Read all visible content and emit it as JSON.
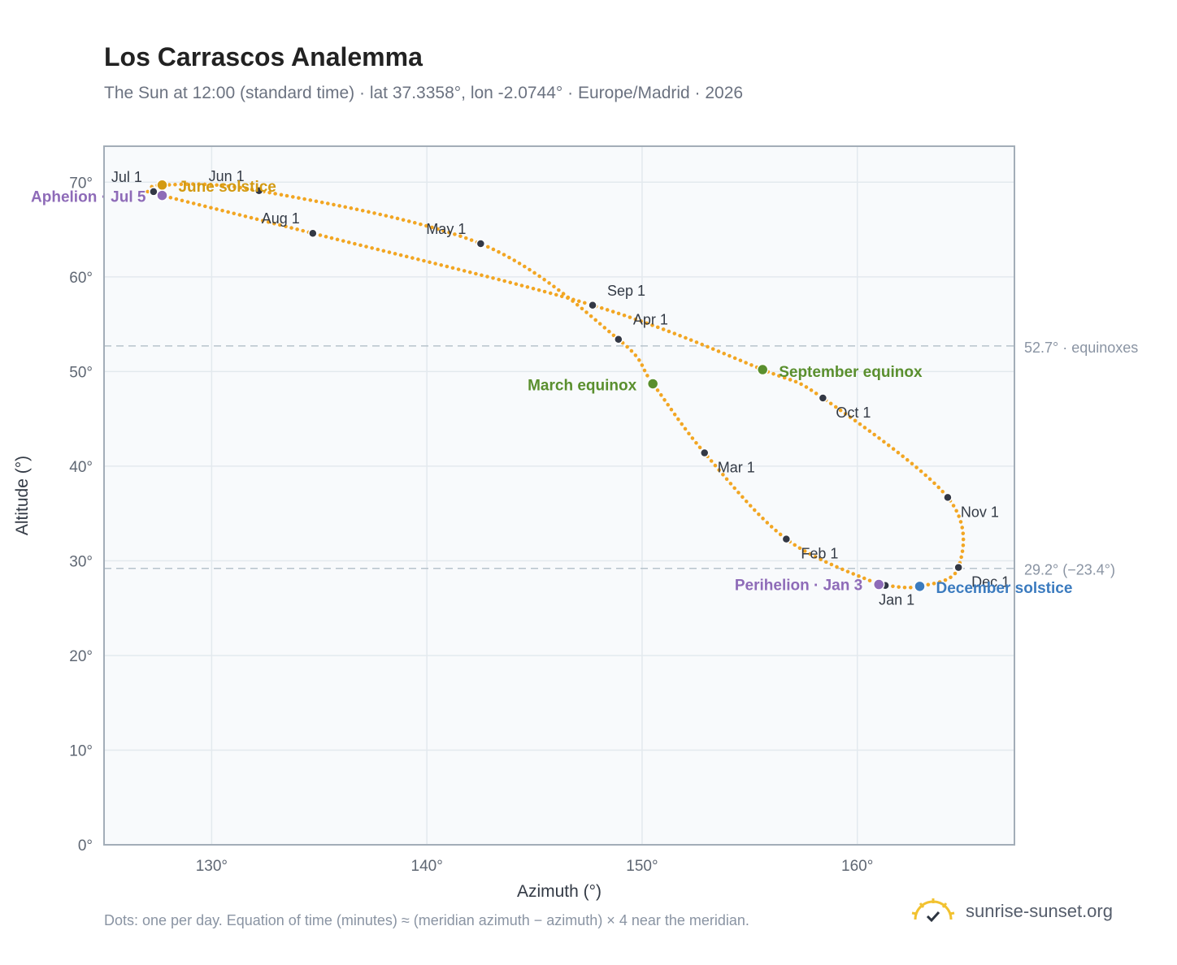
{
  "header": {
    "title": "Los Carrascos Analemma",
    "subtitle": "The Sun at 12:00 (standard time) · lat 37.3358°, lon -2.0744° · Europe/Madrid · 2026"
  },
  "footer": {
    "note": "Dots: one per day. Equation of time (minutes) ≈ (meridian azimuth − azimuth) × 4 near the meridian.",
    "brand": "sunrise-sunset.org"
  },
  "colors": {
    "curve": "#f2a623",
    "month_marker": "#333845",
    "solstice_june": "#d39a12",
    "solstice_december": "#3b7bbf",
    "equinox": "#5a8f2e",
    "apsis": "#8e6bb8",
    "reference_line": "#b7c3cc",
    "plot_background": "#f8fafc",
    "grid": "#e3e9ee",
    "frame": "#a3adb8"
  },
  "chart_data": {
    "type": "scatter",
    "xlabel": "Azimuth (°)",
    "ylabel": "Altitude (°)",
    "xlim": [
      125,
      167.3
    ],
    "ylim": [
      0,
      73.8
    ],
    "x_ticks": [
      130,
      140,
      150,
      160
    ],
    "y_ticks": [
      0,
      10,
      20,
      30,
      40,
      50,
      60,
      70
    ],
    "x_tick_labels": [
      "130°",
      "140°",
      "150°",
      "160°"
    ],
    "y_tick_labels": [
      "0°",
      "10°",
      "20°",
      "30°",
      "40°",
      "50°",
      "60°",
      "70°"
    ],
    "grid": true,
    "path": [
      {
        "date": "Jan 1",
        "az": 161.3,
        "alt": 27.4
      },
      {
        "date": "Jan 3",
        "az": 161.0,
        "alt": 27.5
      },
      {
        "date": "Feb 1",
        "az": 156.7,
        "alt": 32.3
      },
      {
        "date": "Mar 1",
        "az": 152.9,
        "alt": 41.4
      },
      {
        "date": "Mar 20",
        "az": 150.5,
        "alt": 48.7
      },
      {
        "date": "Apr 1",
        "az": 148.9,
        "alt": 53.4
      },
      {
        "date": "May 1",
        "az": 142.5,
        "alt": 63.5
      },
      {
        "date": "Jun 1",
        "az": 132.2,
        "alt": 69.1
      },
      {
        "date": "Jun 21",
        "az": 127.7,
        "alt": 69.7
      },
      {
        "date": "Jul 1",
        "az": 127.3,
        "alt": 69.0
      },
      {
        "date": "Jul 5",
        "az": 127.7,
        "alt": 68.6
      },
      {
        "date": "Aug 1",
        "az": 134.7,
        "alt": 64.6
      },
      {
        "date": "Sep 1",
        "az": 147.7,
        "alt": 57.0
      },
      {
        "date": "Sep 23",
        "az": 155.6,
        "alt": 50.2
      },
      {
        "date": "Oct 1",
        "az": 158.4,
        "alt": 47.2
      },
      {
        "date": "Nov 1",
        "az": 164.2,
        "alt": 36.7
      },
      {
        "date": "Dec 1",
        "az": 164.7,
        "alt": 29.3
      },
      {
        "date": "Dec 21",
        "az": 162.9,
        "alt": 27.3
      },
      {
        "date": "Jan 1",
        "az": 161.3,
        "alt": 27.4
      }
    ],
    "month_markers": [
      {
        "label": "Jan 1",
        "az": 161.3,
        "alt": 27.4
      },
      {
        "label": "Feb 1",
        "az": 156.7,
        "alt": 32.3
      },
      {
        "label": "Mar 1",
        "az": 152.9,
        "alt": 41.4
      },
      {
        "label": "Apr 1",
        "az": 148.9,
        "alt": 53.4
      },
      {
        "label": "May 1",
        "az": 142.5,
        "alt": 63.5
      },
      {
        "label": "Jun 1",
        "az": 132.2,
        "alt": 69.1
      },
      {
        "label": "Jul 1",
        "az": 127.3,
        "alt": 69.0
      },
      {
        "label": "Aug 1",
        "az": 134.7,
        "alt": 64.6
      },
      {
        "label": "Sep 1",
        "az": 147.7,
        "alt": 57.0
      },
      {
        "label": "Oct 1",
        "az": 158.4,
        "alt": 47.2
      },
      {
        "label": "Nov 1",
        "az": 164.2,
        "alt": 36.7
      },
      {
        "label": "Dec 1",
        "az": 164.7,
        "alt": 29.3
      }
    ],
    "events": [
      {
        "label": "June solstice",
        "az": 127.7,
        "alt": 69.7,
        "color": "#d39a12"
      },
      {
        "label": "Aphelion · Jul 5",
        "az": 127.7,
        "alt": 68.6,
        "color": "#8e6bb8"
      },
      {
        "label": "March equinox",
        "az": 150.5,
        "alt": 48.7,
        "color": "#5a8f2e"
      },
      {
        "label": "September equinox",
        "az": 155.6,
        "alt": 50.2,
        "color": "#5a8f2e"
      },
      {
        "label": "Perihelion · Jan 3",
        "az": 161.0,
        "alt": 27.5,
        "color": "#8e6bb8"
      },
      {
        "label": "December solstice",
        "az": 162.9,
        "alt": 27.3,
        "color": "#3b7bbf"
      }
    ],
    "reference_lines": [
      {
        "alt": 52.7,
        "label": "52.7° · equinoxes"
      },
      {
        "alt": 29.2,
        "label": "29.2° (−23.4°)"
      }
    ]
  }
}
